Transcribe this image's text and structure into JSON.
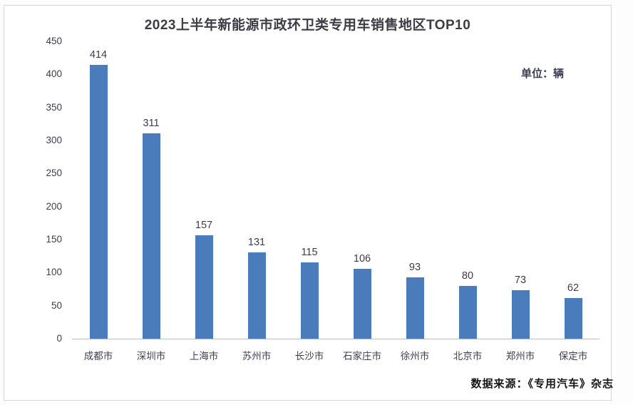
{
  "page": {
    "title": "2023上半年新能源市政环卫类专用车销售地区TOP10",
    "unit_label": "单位：辆",
    "source_label": "数据来源：《专用汽车》杂志"
  },
  "chart_data": {
    "type": "bar",
    "title": "2023上半年新能源市政环卫类专用车销售地区TOP10",
    "categories": [
      "成都市",
      "深圳市",
      "上海市",
      "苏州市",
      "长沙市",
      "石家庄市",
      "徐州市",
      "北京市",
      "郑州市",
      "保定市"
    ],
    "values": [
      414,
      311,
      157,
      131,
      115,
      106,
      93,
      80,
      73,
      62
    ],
    "unit": "辆",
    "xlabel": "",
    "ylabel": "",
    "ylim": [
      0,
      450
    ],
    "ytick_step": 50,
    "grid": false,
    "legend": "none",
    "data_labels": true,
    "bar_color": "#4a7bba",
    "source": "数据来源：《专用汽车》杂志"
  }
}
